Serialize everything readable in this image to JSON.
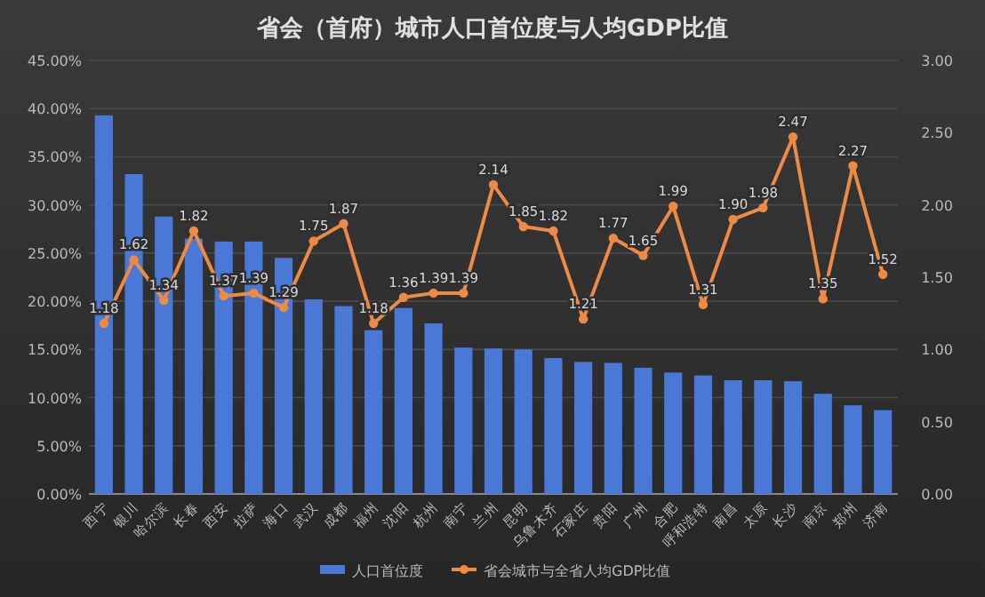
{
  "chart_data": {
    "type": "bar",
    "title": "省会（首府）城市人口首位度与人均GDP比值",
    "categories": [
      "西宁",
      "银川",
      "哈尔滨",
      "长春",
      "西安",
      "拉萨",
      "海口",
      "武汉",
      "成都",
      "福州",
      "沈阳",
      "杭州",
      "南宁",
      "兰州",
      "昆明",
      "乌鲁木齐",
      "石家庄",
      "贵阳",
      "广州",
      "合肥",
      "呼和浩特",
      "南昌",
      "太原",
      "长沙",
      "南京",
      "郑州",
      "济南"
    ],
    "series": [
      {
        "name": "人口首位度",
        "color": "#4a78d6",
        "values": [
          39.3,
          33.2,
          28.8,
          26.5,
          26.2,
          26.2,
          24.5,
          20.2,
          19.5,
          17.0,
          19.3,
          17.7,
          15.2,
          15.1,
          15.0,
          14.1,
          13.7,
          13.6,
          13.1,
          12.6,
          12.3,
          11.8,
          11.8,
          11.7,
          10.4,
          9.2,
          8.7
        ]
      },
      {
        "name": "省会城市与全省人均GDP比值",
        "type": "line",
        "axis": "y2",
        "color": "#ed8a45",
        "marker": "circle",
        "values": [
          1.18,
          1.62,
          1.34,
          1.82,
          1.37,
          1.39,
          1.29,
          1.75,
          1.87,
          1.18,
          1.36,
          1.39,
          1.39,
          2.14,
          1.85,
          1.82,
          1.21,
          1.77,
          1.65,
          1.99,
          1.31,
          1.9,
          1.98,
          2.47,
          1.35,
          2.27,
          1.52
        ],
        "value_labels": [
          "1.18",
          "1.62",
          "1.34",
          "1.82",
          "1.37",
          "1.39",
          "1.29",
          "1.75",
          "1.87",
          "1.18",
          "1.36",
          "1.39",
          "1.39",
          "2.14",
          "1.85",
          "1.82",
          "1.21",
          "1.77",
          "1.65",
          "1.99",
          "1.31",
          "1.90",
          "1.98",
          "2.47",
          "1.35",
          "2.27",
          "1.52"
        ]
      }
    ],
    "ylim": [
      0,
      45
    ],
    "yticks": [
      {
        "value": 0,
        "label": "0.00%"
      },
      {
        "value": 5,
        "label": "5.00%"
      },
      {
        "value": 10,
        "label": "10.00%"
      },
      {
        "value": 15,
        "label": "15.00%"
      },
      {
        "value": 20,
        "label": "20.00%"
      },
      {
        "value": 25,
        "label": "25.00%"
      },
      {
        "value": 30,
        "label": "30.00%"
      },
      {
        "value": 35,
        "label": "35.00%"
      },
      {
        "value": 40,
        "label": "40.00%"
      },
      {
        "value": 45,
        "label": "45.00%"
      }
    ],
    "y2lim": [
      0,
      3
    ],
    "y2ticks": [
      {
        "value": 0,
        "label": "0.00"
      },
      {
        "value": 0.5,
        "label": "0.50"
      },
      {
        "value": 1,
        "label": "1.00"
      },
      {
        "value": 1.5,
        "label": "1.50"
      },
      {
        "value": 2,
        "label": "2.00"
      },
      {
        "value": 2.5,
        "label": "2.50"
      },
      {
        "value": 3,
        "label": "3.00"
      }
    ],
    "grid": "y",
    "legend": "bottom"
  }
}
